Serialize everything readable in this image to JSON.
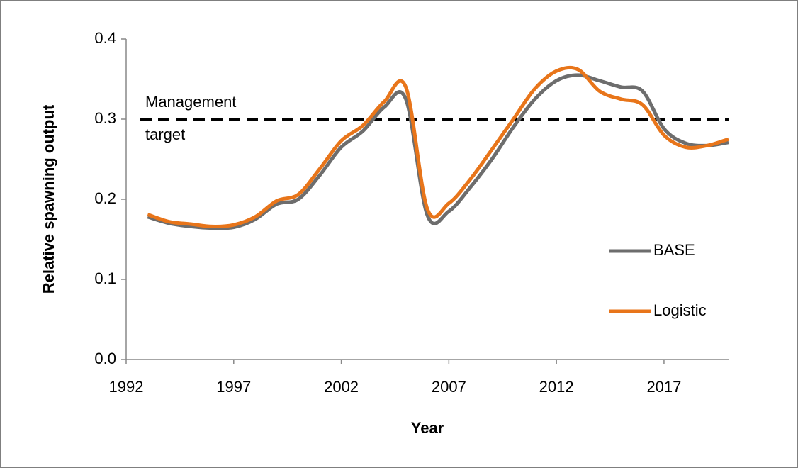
{
  "chart_data": {
    "type": "line",
    "x_label": "Year",
    "y_label": "Relative spawning output",
    "x": [
      1993,
      1994,
      1995,
      1996,
      1997,
      1998,
      1999,
      2000,
      2001,
      2002,
      2003,
      2004,
      2005,
      2006,
      2007,
      2008,
      2009,
      2010,
      2011,
      2012,
      2013,
      2014,
      2015,
      2016,
      2017,
      2018,
      2019,
      2020
    ],
    "series": [
      {
        "name": "BASE",
        "color": "#6d6d6d",
        "values": [
          0.178,
          0.17,
          0.166,
          0.164,
          0.165,
          0.175,
          0.194,
          0.2,
          0.23,
          0.265,
          0.285,
          0.315,
          0.325,
          0.18,
          0.185,
          0.215,
          0.25,
          0.29,
          0.325,
          0.348,
          0.355,
          0.348,
          0.34,
          0.335,
          0.288,
          0.27,
          0.267,
          0.271
        ]
      },
      {
        "name": "Logistic",
        "color": "#e8751a",
        "values": [
          0.181,
          0.172,
          0.169,
          0.166,
          0.168,
          0.178,
          0.198,
          0.206,
          0.238,
          0.273,
          0.292,
          0.322,
          0.34,
          0.188,
          0.195,
          0.225,
          0.262,
          0.3,
          0.338,
          0.36,
          0.362,
          0.335,
          0.325,
          0.318,
          0.28,
          0.265,
          0.267,
          0.275
        ]
      }
    ],
    "target_line": 0.3,
    "target_color": "#000000",
    "annotation_lines": [
      "Management",
      "target"
    ],
    "xlim": [
      1992,
      2020
    ],
    "xticks": [
      1992,
      1997,
      2002,
      2007,
      2012,
      2017
    ],
    "ylim": [
      0,
      0.4
    ],
    "yticks": [
      {
        "value": 0,
        "label": "0.0"
      },
      0.1,
      0.2,
      0.3,
      0.4
    ],
    "grid": false,
    "legend": "right"
  }
}
